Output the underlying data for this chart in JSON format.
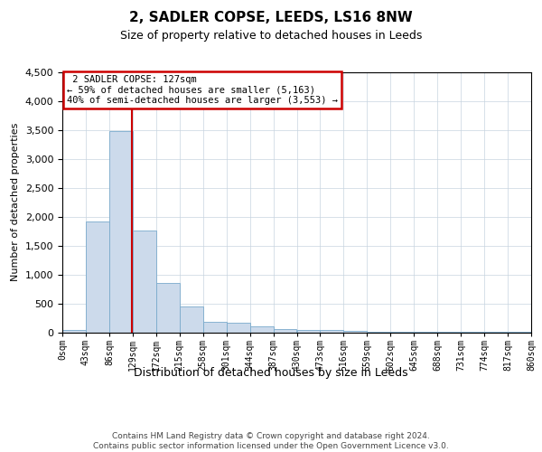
{
  "title": "2, SADLER COPSE, LEEDS, LS16 8NW",
  "subtitle": "Size of property relative to detached houses in Leeds",
  "xlabel": "Distribution of detached houses by size in Leeds",
  "ylabel": "Number of detached properties",
  "footer_line1": "Contains HM Land Registry data © Crown copyright and database right 2024.",
  "footer_line2": "Contains public sector information licensed under the Open Government Licence v3.0.",
  "bar_color": "#ccdaeb",
  "bar_edge_color": "#7aaacc",
  "grid_color": "#c8d4e0",
  "annotation_box_color": "#cc0000",
  "vline_color": "#cc0000",
  "property_size": 127,
  "property_label": "2 SADLER COPSE: 127sqm",
  "smaller_pct": 59,
  "smaller_count": 5163,
  "larger_pct": 40,
  "larger_count": 3553,
  "bin_edges": [
    0,
    43,
    86,
    129,
    172,
    215,
    258,
    301,
    344,
    387,
    430,
    473,
    516,
    559,
    602,
    645,
    688,
    731,
    774,
    817,
    860
  ],
  "bar_heights": [
    35,
    1920,
    3490,
    1760,
    850,
    450,
    175,
    170,
    95,
    55,
    45,
    35,
    20,
    8,
    5,
    3,
    2,
    2,
    2,
    1
  ],
  "ylim": [
    0,
    4500
  ],
  "yticks": [
    0,
    500,
    1000,
    1500,
    2000,
    2500,
    3000,
    3500,
    4000,
    4500
  ],
  "background_color": "#ffffff",
  "title_fontsize": 11,
  "subtitle_fontsize": 9,
  "ylabel_fontsize": 8,
  "xlabel_fontsize": 9,
  "footer_fontsize": 6.5,
  "ytick_fontsize": 8,
  "xtick_fontsize": 7,
  "annot_fontsize": 7.5
}
